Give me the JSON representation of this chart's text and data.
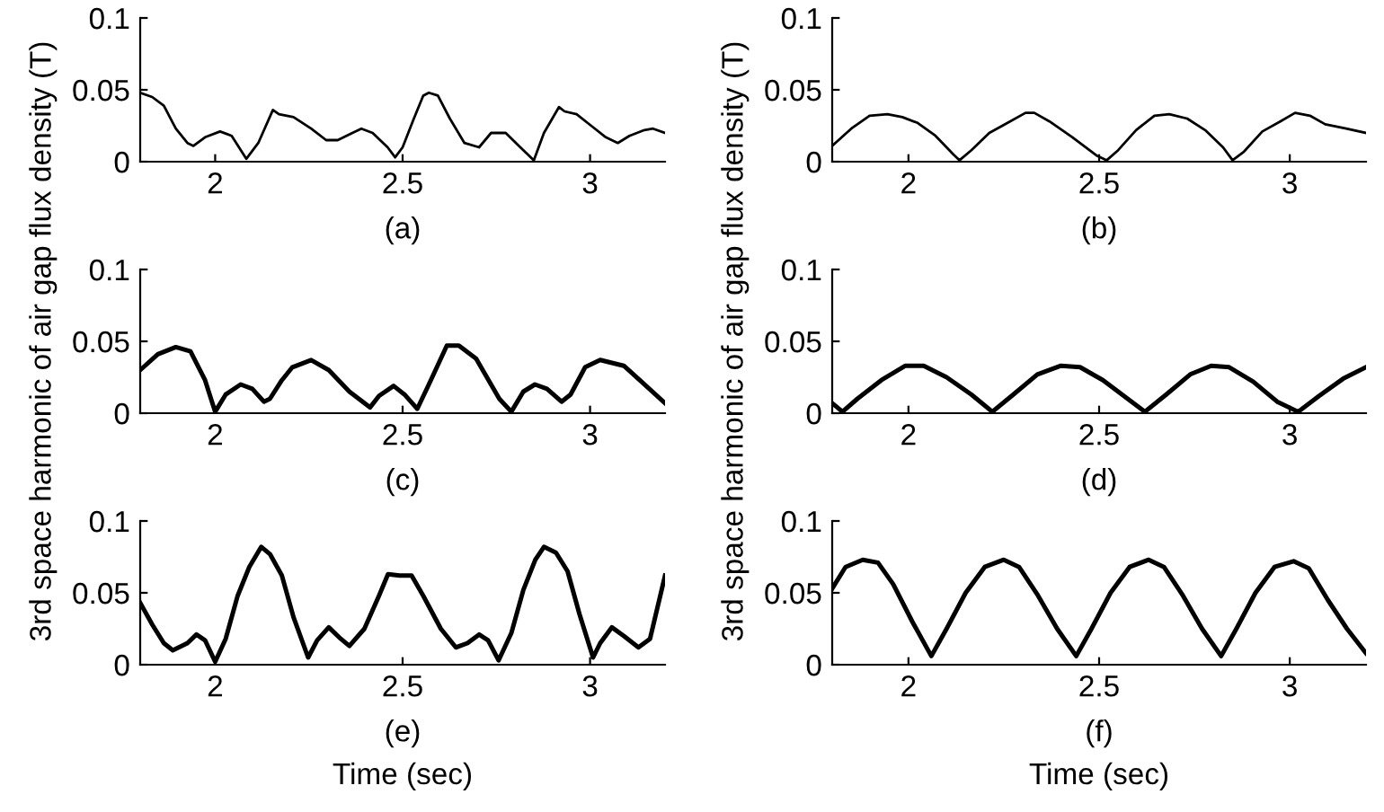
{
  "chart_data": [
    {
      "type": "line",
      "annotations": [
        "(a)"
      ],
      "xlim": [
        1.8,
        3.2
      ],
      "xticks": [
        2,
        2.5,
        3
      ],
      "ylim": [
        0,
        0.1
      ],
      "yticks": [
        0,
        0.05,
        0.1
      ],
      "grid": false,
      "series": [
        {
          "color": "#000000",
          "x": [
            1.8,
            1.832,
            1.863,
            1.895,
            1.926,
            1.942,
            1.973,
            2.013,
            2.044,
            2.083,
            2.115,
            2.154,
            2.17,
            2.209,
            2.256,
            2.296,
            2.327,
            2.366,
            2.39,
            2.42,
            2.46,
            2.48,
            2.5,
            2.53,
            2.555,
            2.57,
            2.594,
            2.626,
            2.665,
            2.704,
            2.736,
            2.775,
            2.814,
            2.85,
            2.877,
            2.917,
            2.932,
            2.964,
            3.003,
            3.042,
            3.074,
            3.105,
            3.145,
            3.168,
            3.2
          ],
          "values": [
            0.048,
            0.045,
            0.039,
            0.023,
            0.013,
            0.011,
            0.017,
            0.021,
            0.018,
            0.002,
            0.013,
            0.036,
            0.033,
            0.031,
            0.023,
            0.015,
            0.015,
            0.02,
            0.023,
            0.02,
            0.01,
            0.003,
            0.01,
            0.03,
            0.046,
            0.048,
            0.046,
            0.03,
            0.013,
            0.01,
            0.02,
            0.02,
            0.01,
            0.001,
            0.02,
            0.038,
            0.035,
            0.033,
            0.025,
            0.017,
            0.013,
            0.018,
            0.022,
            0.023,
            0.02
          ]
        }
      ]
    },
    {
      "type": "line",
      "annotations": [
        "(b)"
      ],
      "xlim": [
        1.8,
        3.2
      ],
      "xticks": [
        2,
        2.5,
        3
      ],
      "ylim": [
        0,
        0.1
      ],
      "yticks": [
        0,
        0.05,
        0.1
      ],
      "grid": false,
      "series": [
        {
          "color": "#000000",
          "x": [
            1.8,
            1.85,
            1.898,
            1.945,
            1.984,
            2.024,
            2.071,
            2.118,
            2.134,
            2.165,
            2.212,
            2.26,
            2.307,
            2.33,
            2.37,
            2.43,
            2.495,
            2.52,
            2.55,
            2.597,
            2.645,
            2.684,
            2.731,
            2.778,
            2.825,
            2.85,
            2.88,
            2.928,
            2.975,
            3.014,
            3.053,
            3.093,
            3.148,
            3.2
          ],
          "values": [
            0.011,
            0.023,
            0.032,
            0.033,
            0.031,
            0.027,
            0.018,
            0.005,
            0.001,
            0.008,
            0.02,
            0.027,
            0.034,
            0.034,
            0.028,
            0.017,
            0.004,
            0.001,
            0.008,
            0.022,
            0.032,
            0.033,
            0.03,
            0.022,
            0.01,
            0.001,
            0.007,
            0.021,
            0.028,
            0.034,
            0.032,
            0.026,
            0.023,
            0.02
          ]
        }
      ]
    },
    {
      "type": "line",
      "annotations": [
        "(c)"
      ],
      "ylabel": "3rd space harmonic of air gap flux density (T)",
      "xlim": [
        1.8,
        3.2
      ],
      "xticks": [
        2,
        2.5,
        3
      ],
      "ylim": [
        0,
        0.1
      ],
      "yticks": [
        0,
        0.05,
        0.1
      ],
      "grid": false,
      "series": [
        {
          "color": "#000000",
          "x": [
            1.8,
            1.847,
            1.895,
            1.934,
            1.973,
            2.0,
            2.028,
            2.068,
            2.099,
            2.13,
            2.146,
            2.178,
            2.206,
            2.256,
            2.303,
            2.358,
            2.413,
            2.437,
            2.476,
            2.505,
            2.539,
            2.57,
            2.618,
            2.65,
            2.696,
            2.758,
            2.79,
            2.822,
            2.853,
            2.885,
            2.924,
            2.948,
            2.987,
            3.027,
            3.09,
            3.137,
            3.2
          ],
          "values": [
            0.03,
            0.041,
            0.046,
            0.043,
            0.023,
            0.001,
            0.013,
            0.02,
            0.017,
            0.008,
            0.01,
            0.023,
            0.032,
            0.037,
            0.03,
            0.015,
            0.004,
            0.012,
            0.019,
            0.013,
            0.003,
            0.02,
            0.047,
            0.047,
            0.038,
            0.01,
            0.001,
            0.015,
            0.02,
            0.017,
            0.008,
            0.013,
            0.032,
            0.037,
            0.033,
            0.022,
            0.007
          ]
        }
      ]
    },
    {
      "type": "line",
      "annotations": [
        "(d)"
      ],
      "ylabel": "3rd space harmonic of air gap flux density (T)",
      "xlim": [
        1.8,
        3.2
      ],
      "xticks": [
        2,
        2.5,
        3
      ],
      "ylim": [
        0,
        0.1
      ],
      "yticks": [
        0,
        0.05,
        0.1
      ],
      "grid": false,
      "series": [
        {
          "color": "#000000",
          "x": [
            1.8,
            1.827,
            1.866,
            1.929,
            1.992,
            2.04,
            2.1,
            2.165,
            2.22,
            2.275,
            2.338,
            2.4,
            2.45,
            2.51,
            2.575,
            2.62,
            2.676,
            2.739,
            2.794,
            2.841,
            2.904,
            2.967,
            3.022,
            3.077,
            3.14,
            3.2
          ],
          "values": [
            0.007,
            0.001,
            0.01,
            0.023,
            0.033,
            0.033,
            0.025,
            0.013,
            0.001,
            0.013,
            0.027,
            0.033,
            0.032,
            0.023,
            0.01,
            0.001,
            0.013,
            0.027,
            0.033,
            0.032,
            0.022,
            0.008,
            0.001,
            0.012,
            0.024,
            0.032
          ]
        }
      ]
    },
    {
      "type": "line",
      "annotations": [
        "(e)"
      ],
      "xlabel": "Time (sec)",
      "xlim": [
        1.8,
        3.2
      ],
      "xticks": [
        2,
        2.5,
        3
      ],
      "ylim": [
        0,
        0.1
      ],
      "yticks": [
        0,
        0.05,
        0.1
      ],
      "grid": false,
      "series": [
        {
          "color": "#000000",
          "x": [
            1.8,
            1.832,
            1.863,
            1.887,
            1.926,
            1.95,
            1.973,
            2.0,
            2.028,
            2.06,
            2.091,
            2.123,
            2.146,
            2.178,
            2.209,
            2.248,
            2.272,
            2.303,
            2.335,
            2.358,
            2.398,
            2.437,
            2.461,
            2.492,
            2.524,
            2.555,
            2.602,
            2.642,
            2.673,
            2.704,
            2.728,
            2.756,
            2.79,
            2.822,
            2.854,
            2.877,
            2.909,
            2.94,
            2.972,
            3.008,
            3.027,
            3.058,
            3.09,
            3.129,
            3.16,
            3.2
          ],
          "values": [
            0.043,
            0.028,
            0.015,
            0.01,
            0.015,
            0.021,
            0.017,
            0.002,
            0.018,
            0.048,
            0.068,
            0.082,
            0.077,
            0.062,
            0.033,
            0.005,
            0.017,
            0.026,
            0.018,
            0.013,
            0.025,
            0.048,
            0.063,
            0.062,
            0.062,
            0.048,
            0.025,
            0.012,
            0.015,
            0.021,
            0.017,
            0.003,
            0.022,
            0.052,
            0.073,
            0.082,
            0.078,
            0.065,
            0.035,
            0.005,
            0.015,
            0.026,
            0.02,
            0.012,
            0.018,
            0.062
          ]
        }
      ]
    },
    {
      "type": "line",
      "annotations": [
        "(f)"
      ],
      "xlabel": "Time (sec)",
      "xlim": [
        1.8,
        3.2
      ],
      "xticks": [
        2,
        2.5,
        3
      ],
      "ylim": [
        0,
        0.1
      ],
      "yticks": [
        0,
        0.05,
        0.1
      ],
      "grid": false,
      "series": [
        {
          "color": "#000000",
          "x": [
            1.8,
            1.835,
            1.88,
            1.92,
            1.96,
            2.01,
            2.06,
            2.1,
            2.15,
            2.2,
            2.25,
            2.29,
            2.34,
            2.39,
            2.44,
            2.48,
            2.53,
            2.58,
            2.63,
            2.67,
            2.72,
            2.77,
            2.82,
            2.86,
            2.91,
            2.96,
            3.01,
            3.05,
            3.1,
            3.15,
            3.2
          ],
          "values": [
            0.053,
            0.068,
            0.073,
            0.071,
            0.056,
            0.03,
            0.006,
            0.025,
            0.05,
            0.068,
            0.073,
            0.068,
            0.048,
            0.025,
            0.006,
            0.025,
            0.05,
            0.068,
            0.073,
            0.068,
            0.048,
            0.025,
            0.006,
            0.025,
            0.05,
            0.068,
            0.072,
            0.067,
            0.045,
            0.025,
            0.008
          ]
        }
      ]
    }
  ]
}
